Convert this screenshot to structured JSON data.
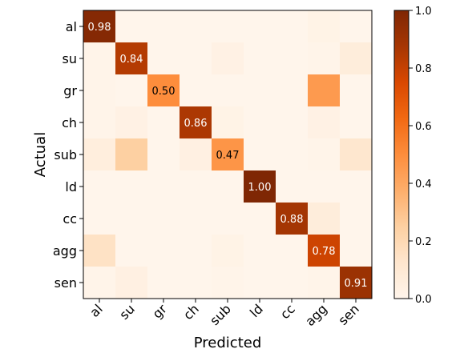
{
  "chart_data": {
    "type": "heatmap",
    "title": "",
    "xlabel": "Predicted",
    "ylabel": "Actual",
    "x_categories": [
      "al",
      "su",
      "gr",
      "ch",
      "sub",
      "ld",
      "cc",
      "agg",
      "sen"
    ],
    "y_categories": [
      "al",
      "su",
      "gr",
      "ch",
      "sub",
      "ld",
      "cc",
      "agg",
      "sen"
    ],
    "values": [
      [
        0.98,
        0.0,
        0.0,
        0.0,
        0.0,
        0.0,
        0.0,
        0.02,
        0.0
      ],
      [
        0.01,
        0.84,
        0.0,
        0.0,
        0.03,
        0.0,
        0.0,
        0.01,
        0.07
      ],
      [
        0.01,
        0.0,
        0.5,
        0.0,
        0.0,
        0.0,
        0.0,
        0.45,
        0.0
      ],
      [
        0.01,
        0.03,
        0.0,
        0.86,
        0.02,
        0.0,
        0.0,
        0.03,
        0.0
      ],
      [
        0.06,
        0.25,
        0.0,
        0.04,
        0.47,
        0.0,
        0.0,
        0.01,
        0.12
      ],
      [
        0.0,
        0.0,
        0.0,
        0.0,
        0.0,
        1.0,
        0.0,
        0.0,
        0.0
      ],
      [
        0.0,
        0.0,
        0.0,
        0.0,
        0.0,
        0.0,
        0.88,
        0.07,
        0.0
      ],
      [
        0.15,
        0.0,
        0.0,
        0.0,
        0.02,
        0.0,
        0.0,
        0.78,
        0.0
      ],
      [
        0.01,
        0.04,
        0.0,
        0.0,
        0.01,
        0.0,
        0.0,
        0.01,
        0.91
      ]
    ],
    "diagonal_labels": [
      "0.98",
      "0.84",
      "0.50",
      "0.86",
      "0.47",
      "1.00",
      "0.88",
      "0.78",
      "0.91"
    ],
    "colormap": "Oranges",
    "colorbar": {
      "range": [
        0.0,
        1.0
      ],
      "ticks": [
        0.0,
        0.2,
        0.4,
        0.6,
        0.8,
        1.0
      ],
      "tick_labels": [
        "0.0",
        "0.2",
        "0.4",
        "0.6",
        "0.8",
        "1.0"
      ]
    },
    "x_tick_rotation_deg": 45
  }
}
